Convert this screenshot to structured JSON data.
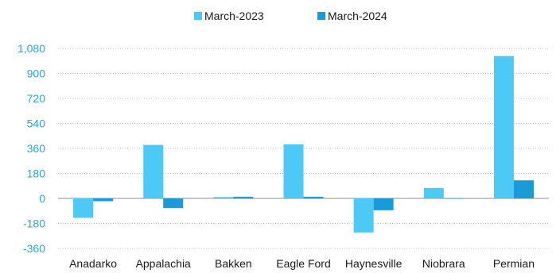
{
  "chart_data": {
    "type": "bar",
    "categories": [
      "Anadarko",
      "Appalachia",
      "Bakken",
      "Eagle Ford",
      "Haynesville",
      "Niobrara",
      "Permian"
    ],
    "series": [
      {
        "name": "March-2023",
        "color": "#4dc9f6",
        "values": [
          -140,
          385,
          10,
          390,
          -245,
          75,
          1025
        ]
      },
      {
        "name": "March-2024",
        "color": "#1a9ad6",
        "values": [
          -20,
          -70,
          12,
          12,
          -85,
          2,
          130
        ]
      }
    ],
    "yticks": [
      -360,
      -180,
      0,
      180,
      360,
      540,
      720,
      900,
      1080
    ],
    "ytick_labels": [
      "-360",
      "-180",
      "0",
      "180",
      "360",
      "540",
      "720",
      "900",
      "1,080"
    ],
    "ylim": [
      -360,
      1080
    ],
    "grid": true,
    "legend_position": "top-center"
  }
}
